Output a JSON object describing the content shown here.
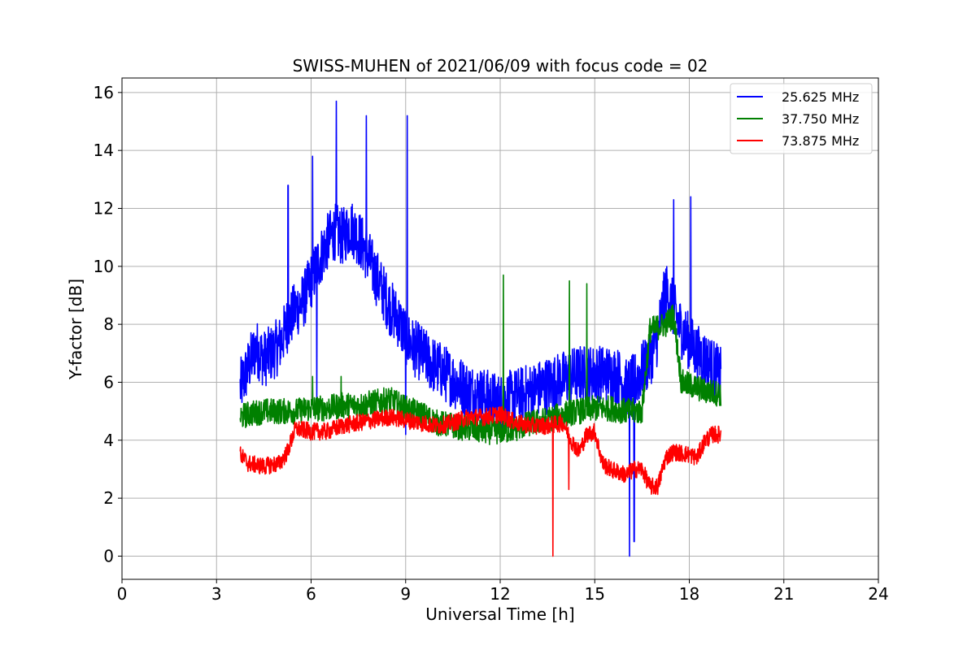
{
  "chart_data": {
    "type": "line",
    "title": "SWISS-MUHEN of 2021/06/09 with focus code = 02",
    "xlabel": "Universal Time [h]",
    "ylabel": "Y-factor [dB]",
    "xlim": [
      0,
      24
    ],
    "ylim": [
      -0.8,
      16.5
    ],
    "xticks": [
      0,
      3,
      6,
      9,
      12,
      15,
      18,
      21,
      24
    ],
    "yticks": [
      0,
      2,
      4,
      6,
      8,
      10,
      12,
      14,
      16
    ],
    "grid": true,
    "legend_position": "top-right",
    "series": [
      {
        "name": "25.625 MHz",
        "color": "#0000ff",
        "x": [
          3.75,
          4.0,
          4.25,
          4.5,
          4.75,
          5.0,
          5.25,
          5.5,
          5.75,
          6.0,
          6.25,
          6.5,
          6.75,
          7.0,
          7.25,
          7.5,
          7.75,
          8.0,
          8.25,
          8.5,
          8.75,
          9.0,
          9.25,
          9.5,
          9.75,
          10.0,
          10.25,
          10.5,
          10.75,
          11.0,
          11.25,
          11.5,
          11.75,
          12.0,
          12.25,
          12.5,
          12.75,
          13.0,
          13.25,
          13.5,
          13.75,
          14.0,
          14.25,
          14.5,
          14.75,
          15.0,
          15.25,
          15.5,
          15.75,
          16.0,
          16.25,
          16.5,
          16.75,
          17.0,
          17.25,
          17.5,
          17.75,
          18.0,
          18.25,
          18.5,
          18.75,
          19.0
        ],
        "y": [
          5.8,
          6.5,
          7.2,
          6.8,
          7.0,
          7.3,
          8.0,
          8.5,
          8.8,
          9.5,
          10.2,
          10.8,
          11.2,
          11.0,
          11.4,
          11.0,
          10.5,
          9.8,
          9.2,
          8.6,
          8.2,
          7.6,
          7.2,
          7.0,
          6.7,
          6.5,
          6.3,
          6.1,
          5.9,
          5.7,
          5.6,
          5.5,
          5.4,
          5.3,
          5.4,
          5.5,
          5.6,
          5.7,
          5.8,
          5.9,
          6.0,
          6.1,
          6.2,
          6.3,
          6.3,
          6.3,
          6.3,
          6.3,
          6.2,
          5.8,
          6.0,
          6.4,
          6.8,
          7.6,
          9.2,
          8.5,
          7.8,
          7.4,
          7.0,
          6.8,
          6.5,
          6.2
        ],
        "noise": 1.0
      },
      {
        "name": "37.750 MHz",
        "color": "#008000",
        "x": [
          3.75,
          4.0,
          4.5,
          5.0,
          5.5,
          6.0,
          6.5,
          7.0,
          7.5,
          8.0,
          8.5,
          9.0,
          9.5,
          10.0,
          10.5,
          11.0,
          11.5,
          12.0,
          12.5,
          13.0,
          13.5,
          14.0,
          14.5,
          15.0,
          15.5,
          16.0,
          16.5,
          16.75,
          17.0,
          17.25,
          17.5,
          17.75,
          18.0,
          18.5,
          19.0
        ],
        "y": [
          4.8,
          4.9,
          5.0,
          5.0,
          5.0,
          5.1,
          5.1,
          5.2,
          5.2,
          5.3,
          5.4,
          5.1,
          4.9,
          4.6,
          4.5,
          4.4,
          4.3,
          4.3,
          4.4,
          4.6,
          4.7,
          4.9,
          5.0,
          5.1,
          5.1,
          5.0,
          5.0,
          7.8,
          7.9,
          8.0,
          8.3,
          6.0,
          5.9,
          5.7,
          5.6
        ],
        "noise": 0.45
      },
      {
        "name": "73.875 MHz",
        "color": "#ff0000",
        "x": [
          3.75,
          4.0,
          4.5,
          5.0,
          5.25,
          5.5,
          6.0,
          6.5,
          7.0,
          7.5,
          8.0,
          8.5,
          9.0,
          9.5,
          10.0,
          10.5,
          11.0,
          11.5,
          12.0,
          12.5,
          13.0,
          13.5,
          14.0,
          14.25,
          14.5,
          14.75,
          15.0,
          15.25,
          15.5,
          15.75,
          16.0,
          16.25,
          16.5,
          16.75,
          17.0,
          17.25,
          17.5,
          18.0,
          18.25,
          18.5,
          18.75,
          19.0
        ],
        "y": [
          3.5,
          3.2,
          3.1,
          3.2,
          3.6,
          4.4,
          4.3,
          4.3,
          4.5,
          4.6,
          4.7,
          4.8,
          4.7,
          4.6,
          4.5,
          4.6,
          4.8,
          4.8,
          4.9,
          4.6,
          4.5,
          4.5,
          4.6,
          4.0,
          3.6,
          4.2,
          4.3,
          3.2,
          3.0,
          2.9,
          2.8,
          3.0,
          3.0,
          2.4,
          2.4,
          3.4,
          3.6,
          3.5,
          3.4,
          4.0,
          4.2,
          4.2
        ],
        "noise": 0.3
      }
    ],
    "spikes": [
      {
        "series": 0,
        "x": 5.27,
        "y": 12.8
      },
      {
        "series": 0,
        "x": 6.05,
        "y": 13.8
      },
      {
        "series": 0,
        "x": 6.18,
        "y": 4.9
      },
      {
        "series": 0,
        "x": 6.8,
        "y": 15.7
      },
      {
        "series": 0,
        "x": 7.75,
        "y": 15.2
      },
      {
        "series": 0,
        "x": 9.05,
        "y": 15.2
      },
      {
        "series": 0,
        "x": 9.0,
        "y": 4.2
      },
      {
        "series": 0,
        "x": 16.1,
        "y": 0.0
      },
      {
        "series": 0,
        "x": 16.25,
        "y": 0.5
      },
      {
        "series": 0,
        "x": 17.5,
        "y": 12.3
      },
      {
        "series": 0,
        "x": 18.05,
        "y": 12.4
      },
      {
        "series": 1,
        "x": 12.1,
        "y": 9.7
      },
      {
        "series": 1,
        "x": 14.2,
        "y": 9.5
      },
      {
        "series": 1,
        "x": 14.75,
        "y": 9.4
      },
      {
        "series": 1,
        "x": 6.05,
        "y": 6.2
      },
      {
        "series": 1,
        "x": 6.95,
        "y": 6.2
      },
      {
        "series": 2,
        "x": 13.67,
        "y": 0.0
      },
      {
        "series": 2,
        "x": 14.18,
        "y": 2.3
      }
    ]
  }
}
